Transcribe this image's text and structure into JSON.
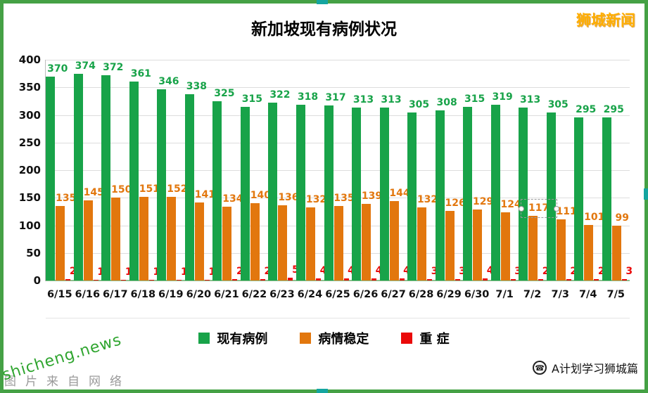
{
  "header": {
    "brand": "狮城新闻"
  },
  "chart_data": {
    "type": "bar",
    "title": "新加坡现有病例状况",
    "categories": [
      "6/15",
      "6/16",
      "6/17",
      "6/18",
      "6/19",
      "6/20",
      "6/21",
      "6/22",
      "6/23",
      "6/24",
      "6/25",
      "6/26",
      "6/27",
      "6/28",
      "6/29",
      "6/30",
      "7/1",
      "7/2",
      "7/3",
      "7/4",
      "7/5"
    ],
    "series": [
      {
        "name": "现有病例",
        "color": "#18a349",
        "values": [
          370,
          374,
          372,
          361,
          346,
          338,
          325,
          315,
          322,
          318,
          317,
          313,
          313,
          305,
          308,
          315,
          319,
          313,
          305,
          295,
          295
        ]
      },
      {
        "name": "病情稳定",
        "color": "#e2770e",
        "values": [
          135,
          145,
          150,
          151,
          152,
          141,
          134,
          140,
          136,
          132,
          135,
          139,
          144,
          132,
          126,
          129,
          124,
          117,
          111,
          101,
          99
        ]
      },
      {
        "name": "重 症",
        "color": "#ea0a0a",
        "values": [
          2,
          1,
          1,
          1,
          1,
          1,
          2,
          2,
          5,
          4,
          4,
          4,
          4,
          3,
          3,
          4,
          3,
          2,
          2,
          2,
          3
        ]
      }
    ],
    "ylim": [
      0,
      400
    ],
    "ytick": 50,
    "grid": true,
    "legend_position": "bottom",
    "value_labels": true
  },
  "footer": {
    "credit": "A计划学习狮城篇",
    "phone_icon": "telephone",
    "watermark": "shicheng.news",
    "background_watermark": "图片来自网络"
  }
}
